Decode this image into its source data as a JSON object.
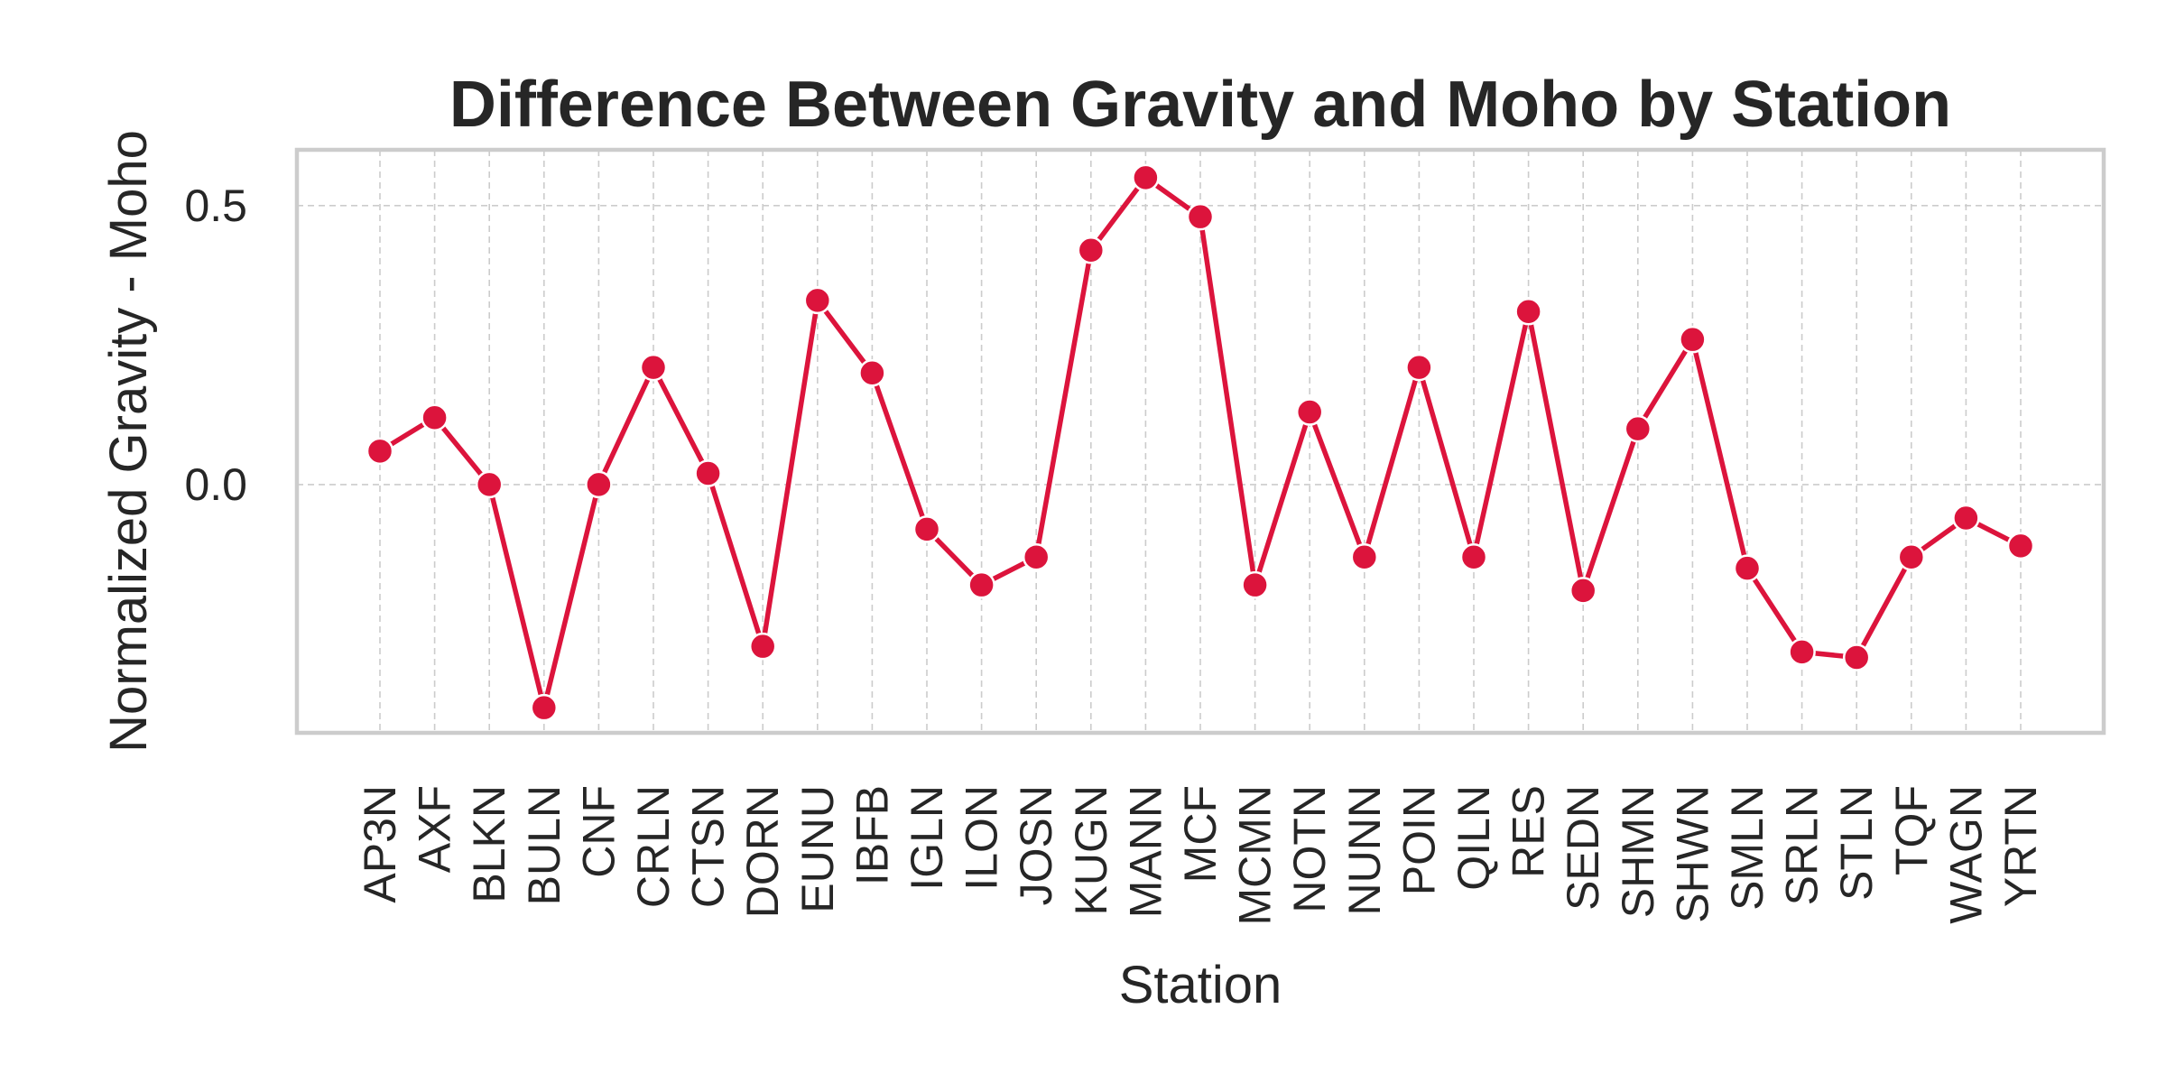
{
  "colors": {
    "series": "#dc143c",
    "text": "#262626",
    "grid": "#cccccc",
    "frame": "#cccccc"
  },
  "chart_data": {
    "type": "line",
    "title": "Difference Between Gravity and Moho by Station",
    "xlabel": "Station",
    "ylabel": "Normalized Gravity - Moho",
    "categories": [
      "AP3N",
      "AXF",
      "BLKN",
      "BULN",
      "CNF",
      "CRLN",
      "CTSN",
      "DORN",
      "EUNU",
      "IBFB",
      "IGLN",
      "ILON",
      "JOSN",
      "KUGN",
      "MANN",
      "MCF",
      "MCMN",
      "NOTN",
      "NUNN",
      "POIN",
      "QILN",
      "RES",
      "SEDN",
      "SHMN",
      "SHWN",
      "SMLN",
      "SRLN",
      "STLN",
      "TQF",
      "WAGN",
      "YRTN"
    ],
    "series": [
      {
        "values": [
          0.06,
          0.12,
          0.0,
          -0.4,
          0.0,
          0.21,
          0.02,
          -0.29,
          0.33,
          0.2,
          -0.08,
          -0.18,
          -0.13,
          0.42,
          0.55,
          0.48,
          -0.18,
          0.13,
          -0.13,
          0.21,
          -0.13,
          0.31,
          -0.19,
          0.1,
          0.26,
          -0.15,
          -0.3,
          -0.31,
          -0.13,
          -0.06,
          -0.11
        ]
      }
    ],
    "yticks": [
      0.0,
      0.5
    ],
    "ylim": [
      -0.445,
      0.6
    ],
    "grid": true,
    "legend": "none"
  }
}
